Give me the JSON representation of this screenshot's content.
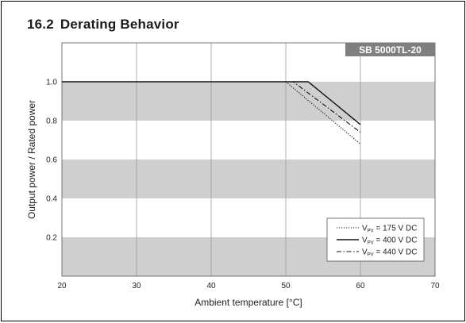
{
  "section": {
    "number": "16.2",
    "title": "Derating Behavior"
  },
  "chart_data": {
    "type": "line",
    "badge": "SB 5000TL-20",
    "xlabel": "Ambient temperature [°C]",
    "ylabel": "Output power / Rated power",
    "xlim": [
      20,
      70
    ],
    "ylim": [
      0,
      1.2
    ],
    "x_ticks": [
      20,
      30,
      40,
      50,
      60,
      70
    ],
    "y_ticks": [
      0.2,
      0.4,
      0.6,
      0.8,
      1.0
    ],
    "y_tick_labels": [
      "0.2",
      "0.4",
      "0.6",
      "0.8",
      "1.0"
    ],
    "grid": "vertical lines at x ticks, alternating shaded horizontal bands",
    "legend_placement": "bottom-right",
    "series": [
      {
        "name_main": "V",
        "name_sub": "PV",
        "name_rest": " = 175 V DC",
        "style": "dotted",
        "points": [
          [
            20,
            1.0
          ],
          [
            50,
            1.0
          ],
          [
            60,
            0.68
          ]
        ]
      },
      {
        "name_main": "V",
        "name_sub": "PV",
        "name_rest": " = 400 V DC",
        "style": "solid",
        "points": [
          [
            20,
            1.0
          ],
          [
            53,
            1.0
          ],
          [
            60,
            0.78
          ]
        ]
      },
      {
        "name_main": "V",
        "name_sub": "PV",
        "name_rest": " = 440 V DC",
        "style": "dashdot",
        "points": [
          [
            20,
            1.0
          ],
          [
            51,
            1.0
          ],
          [
            60,
            0.74
          ]
        ]
      }
    ]
  }
}
